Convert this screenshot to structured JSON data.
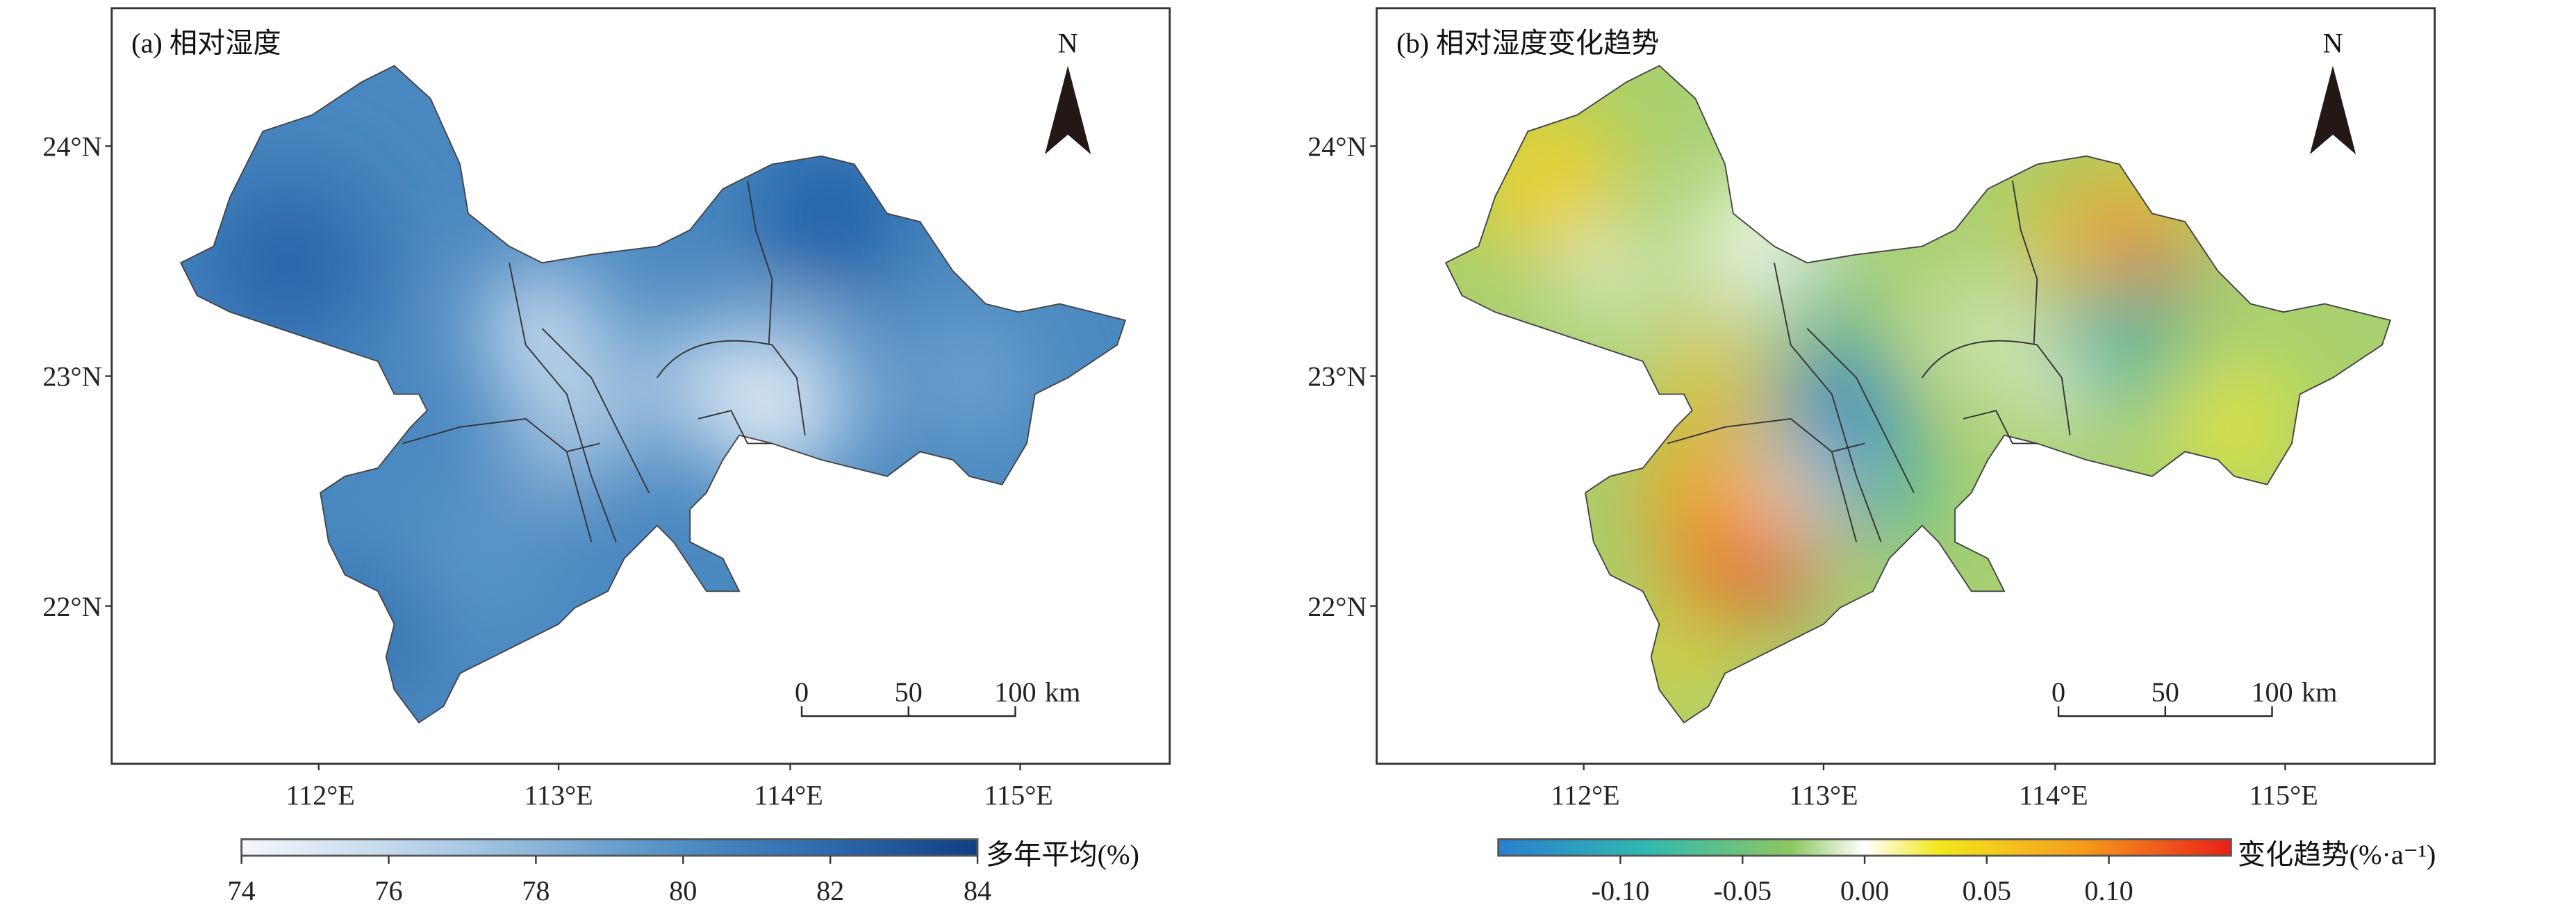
{
  "panels": [
    {
      "title": "(a) 相对湿度",
      "north_label": "N",
      "scale_bar": {
        "labels": [
          "0",
          "50",
          "100"
        ],
        "unit": "km"
      },
      "lat_labels": [
        "24°N",
        "23°N",
        "22°N"
      ],
      "lon_labels": [
        "112°E",
        "113°E",
        "114°E",
        "115°E"
      ],
      "legend": {
        "title": "多年平均(%)",
        "ticks": [
          "74",
          "76",
          "78",
          "80",
          "82",
          "84"
        ],
        "range": [
          74,
          84
        ],
        "colors": [
          "#f4f8fc",
          "#a9c9e4",
          "#4f8dc3",
          "#2c69ac",
          "#123f82"
        ]
      }
    },
    {
      "title": "(b) 相对湿度变化趋势",
      "north_label": "N",
      "scale_bar": {
        "labels": [
          "0",
          "50",
          "100"
        ],
        "unit": "km"
      },
      "lat_labels": [
        "24°N",
        "23°N",
        "22°N"
      ],
      "lon_labels": [
        "112°E",
        "113°E",
        "114°E",
        "115°E"
      ],
      "legend": {
        "title": "变化趋势(%·a⁻¹)",
        "ticks": [
          "-0.10",
          "-0.05",
          "0.00",
          "0.05",
          "0.10"
        ],
        "range": [
          -0.15,
          0.15
        ],
        "colors": [
          "#2a7fd0",
          "#30b8b0",
          "#8cc860",
          "#ffffff",
          "#f2e81c",
          "#f59a1c",
          "#e8201a"
        ]
      }
    }
  ]
}
